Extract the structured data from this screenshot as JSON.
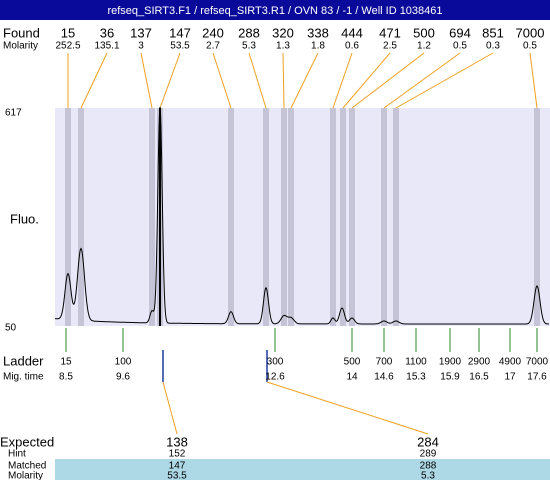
{
  "header": {
    "title": "refseq_SIRT3.F1 / refseq_SIRT3.R1 / OVN 83 / -1 / Well ID 1038461"
  },
  "found": {
    "label": "Found",
    "molarity_label": "Molarity",
    "peaks": [
      {
        "size": "15",
        "molarity": "252.5"
      },
      {
        "size": "36",
        "molarity": "135.1"
      },
      {
        "size": "137",
        "molarity": "3"
      },
      {
        "size": "147",
        "molarity": "53.5"
      },
      {
        "size": "240",
        "molarity": "2.7"
      },
      {
        "size": "288",
        "molarity": "5.3"
      },
      {
        "size": "320",
        "molarity": "1.3"
      },
      {
        "size": "338",
        "molarity": "1.8"
      },
      {
        "size": "444",
        "molarity": "0.6"
      },
      {
        "size": "471",
        "molarity": "2.5"
      },
      {
        "size": "500",
        "molarity": "1.2"
      },
      {
        "size": "694",
        "molarity": "0.5"
      },
      {
        "size": "851",
        "molarity": "0.3"
      },
      {
        "size": "7000",
        "molarity": "0.5"
      }
    ]
  },
  "plot": {
    "y_label": "Fluo.",
    "y_max": "617",
    "y_min": "50"
  },
  "ladder": {
    "label": "Ladder",
    "time_label": "Mig. time",
    "marks": [
      {
        "size": "15",
        "time": "8.5"
      },
      {
        "size": "100",
        "time": "9.6"
      },
      {
        "size": "300",
        "time": "12.6"
      },
      {
        "size": "500",
        "time": "14"
      },
      {
        "size": "700",
        "time": "14.6"
      },
      {
        "size": "1100",
        "time": "15.3"
      },
      {
        "size": "1900",
        "time": "15.9"
      },
      {
        "size": "2900",
        "time": "16.5"
      },
      {
        "size": "4900",
        "time": "17"
      },
      {
        "size": "7000",
        "time": "17.6"
      }
    ]
  },
  "expected": {
    "labels": [
      "Expected",
      "Hint",
      "Matched",
      "Molarity"
    ],
    "columns": [
      {
        "expected": "138",
        "hint": "152",
        "matched": "147",
        "molarity": "53.5"
      },
      {
        "expected": "284",
        "hint": "289",
        "matched": "288",
        "molarity": "5.3"
      }
    ]
  }
}
